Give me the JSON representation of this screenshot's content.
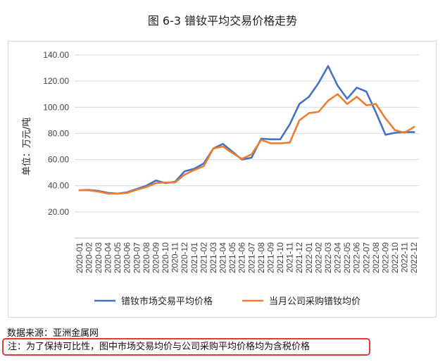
{
  "figure": {
    "title": "图 6-3  镨钕平均交易价格走势",
    "source": "数据来源：亚洲金属网",
    "note": "注：为了保持可比性，图中市场交易均价与公司采购平均价格均为含税价格"
  },
  "colors": {
    "series1": "#4472c4",
    "series2": "#ed7d31",
    "grid": "#d9d9d9",
    "note_border": "#e23b3b"
  },
  "chart_data": {
    "type": "line",
    "title": "",
    "xlabel": "",
    "ylabel": "单位：万元/吨",
    "ylim": [
      0,
      140
    ],
    "yticks": [
      "",
      "20.00",
      "40.00",
      "60.00",
      "80.00",
      "100.00",
      "120.00",
      "140.00"
    ],
    "grid": true,
    "legend": "bottom",
    "categories": [
      "2020-01",
      "2020-02",
      "2020-03",
      "2020-04",
      "2020-05",
      "2020-06",
      "2020-07",
      "2020-08",
      "2020-09",
      "2020-10",
      "2020-11",
      "2020-12",
      "2021-01",
      "2021-02",
      "2021-03",
      "2021-04",
      "2021-05",
      "2021-06",
      "2021-07",
      "2021-08",
      "2021-09",
      "2021-10",
      "2021-11",
      "2021-12",
      "2022-01",
      "2022-02",
      "2022-03",
      "2022-04",
      "2022-05",
      "2022-06",
      "2022-07",
      "2022-08",
      "2022-09",
      "2022-10",
      "2022-11",
      "2022-12"
    ],
    "series": [
      {
        "name": "镨钕市场交易平均价格",
        "values": [
          36.5,
          36.8,
          36.0,
          34.5,
          34.0,
          35.0,
          37.5,
          40.0,
          44.0,
          42.0,
          43.0,
          51.0,
          53.0,
          57.0,
          68.5,
          72.0,
          66.0,
          60.0,
          61.5,
          76.0,
          75.5,
          75.5,
          87.0,
          102.5,
          108.0,
          118.5,
          131.5,
          116.5,
          106.5,
          115.0,
          112.0,
          96.0,
          79.0,
          80.5,
          81.0,
          81.0
        ]
      },
      {
        "name": "当月公司采购镨钕均价",
        "values": [
          36.5,
          36.5,
          35.5,
          34.0,
          34.0,
          34.5,
          37.0,
          39.0,
          42.0,
          42.5,
          42.5,
          48.5,
          52.0,
          55.0,
          68.5,
          70.0,
          65.0,
          60.5,
          64.0,
          75.0,
          72.5,
          72.5,
          73.0,
          90.0,
          95.5,
          96.5,
          105.0,
          110.0,
          102.5,
          108.0,
          101.5,
          102.5,
          91.5,
          82.5,
          80.5,
          85.0
        ]
      }
    ]
  }
}
